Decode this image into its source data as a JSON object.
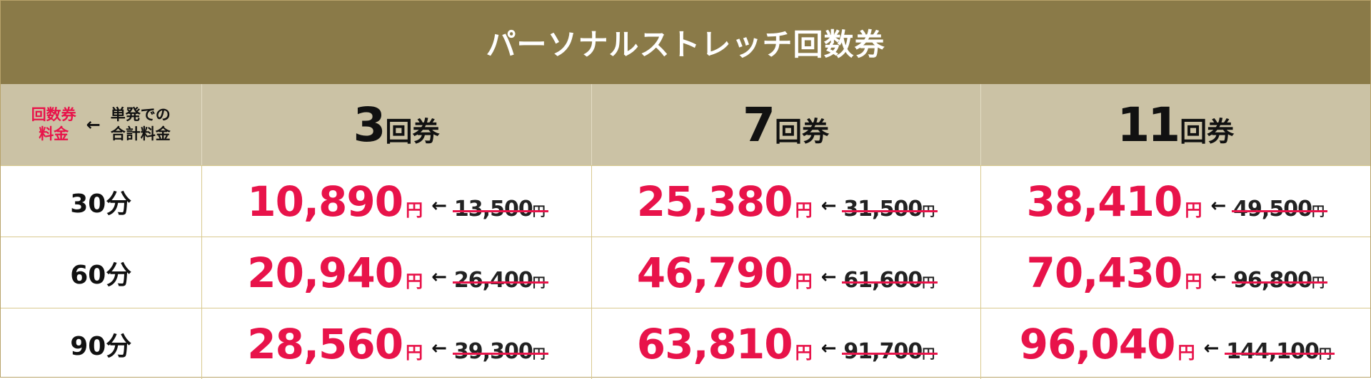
{
  "title": "パーソナルストレッチ回数券",
  "legend": {
    "ticket_line1": "回数券",
    "ticket_line2": "料金",
    "arrow": "←",
    "single_line1": "単発での",
    "single_line2": "合計料金"
  },
  "plans": [
    {
      "count": "3",
      "unit": "回券"
    },
    {
      "count": "7",
      "unit": "回券"
    },
    {
      "count": "11",
      "unit": "回券"
    }
  ],
  "yen": "円",
  "arrow": "←",
  "rows": [
    {
      "duration": "30分",
      "prices": [
        {
          "ticket": "10,890",
          "single": "13,500"
        },
        {
          "ticket": "25,380",
          "single": "31,500"
        },
        {
          "ticket": "38,410",
          "single": "49,500"
        }
      ]
    },
    {
      "duration": "60分",
      "prices": [
        {
          "ticket": "20,940",
          "single": "26,400"
        },
        {
          "ticket": "46,790",
          "single": "61,600"
        },
        {
          "ticket": "70,430",
          "single": "96,800"
        }
      ]
    },
    {
      "duration": "90分",
      "prices": [
        {
          "ticket": "28,560",
          "single": "39,300"
        },
        {
          "ticket": "63,810",
          "single": "91,700"
        },
        {
          "ticket": "96,040",
          "single": "144,100"
        }
      ]
    }
  ],
  "colors": {
    "header_bg": "#8a7a48",
    "subheader_bg": "#cbc2a5",
    "accent_red": "#e8134a",
    "border": "#d9c98f"
  }
}
